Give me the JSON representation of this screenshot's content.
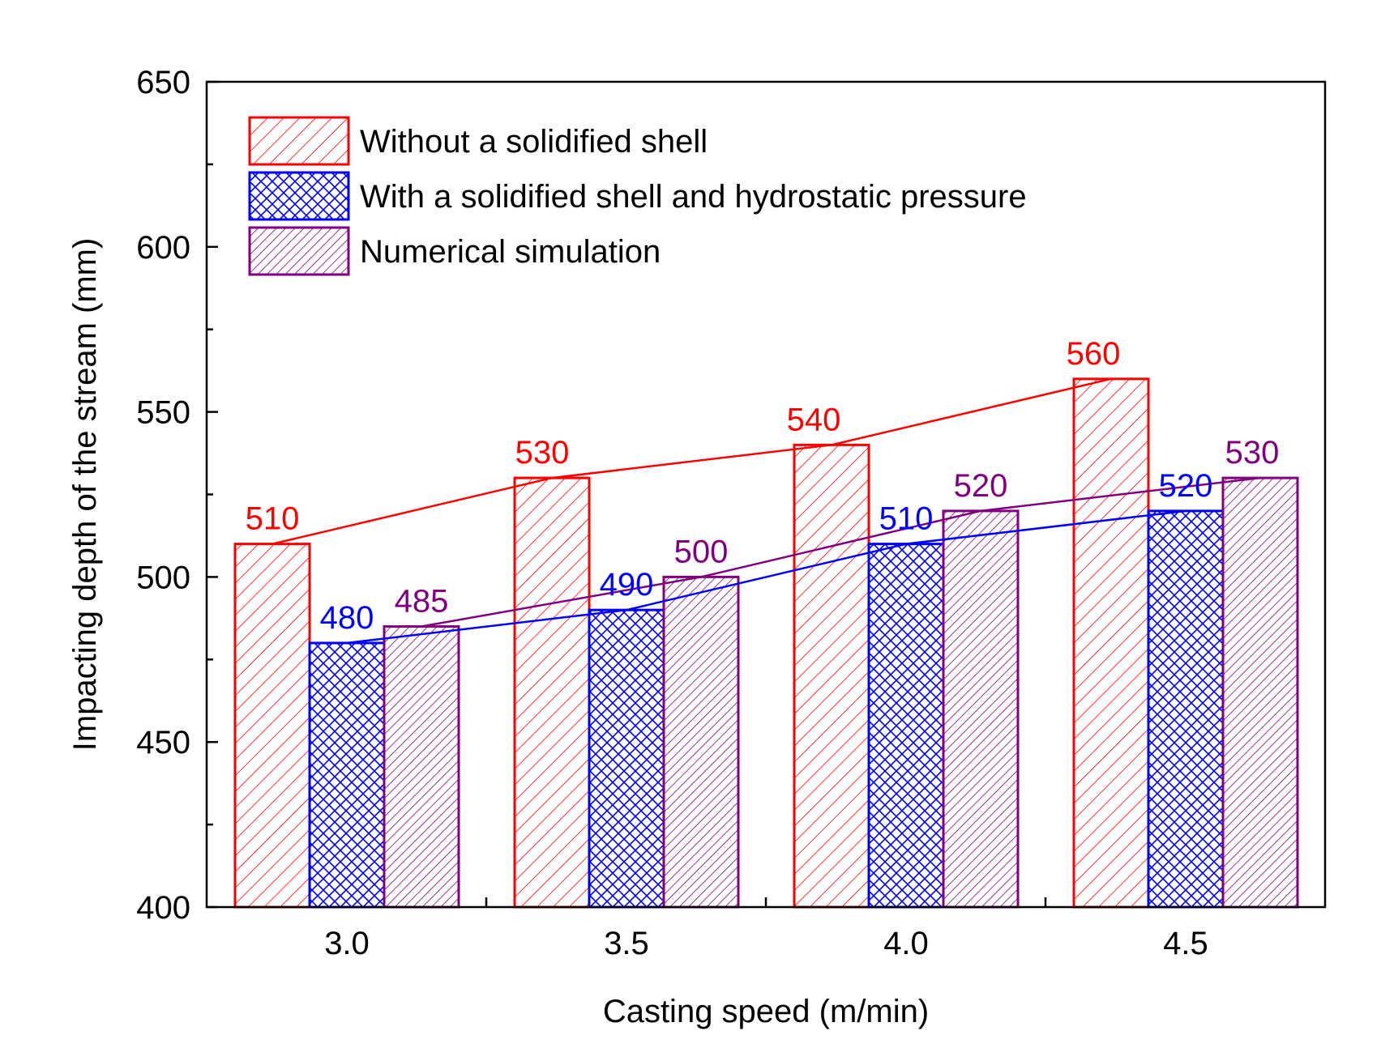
{
  "chart_data": {
    "type": "bar",
    "title": "",
    "xlabel": "Casting speed (m/min)",
    "ylabel": "Impacting depth of the stream (mm)",
    "categories": [
      "3.0",
      "3.5",
      "4.0",
      "4.5"
    ],
    "ylim": [
      400,
      650
    ],
    "yticks": [
      "400",
      "450",
      "500",
      "550",
      "600",
      "650"
    ],
    "grid": false,
    "legend_position": "top-left",
    "series": [
      {
        "name": "Without a solidified shell",
        "values": [
          510,
          530,
          540,
          560
        ],
        "labels": [
          "510",
          "530",
          "540",
          "560"
        ],
        "color": "#ff0000",
        "pattern": "diagonal-hatch"
      },
      {
        "name": "With a solidified shell and hydrostatic pressure",
        "values": [
          480,
          490,
          510,
          520
        ],
        "labels": [
          "480",
          "490",
          "510",
          "520"
        ],
        "color": "#0000ff",
        "pattern": "cross-hatch"
      },
      {
        "name": "Numerical simulation",
        "values": [
          485,
          500,
          520,
          530
        ],
        "labels": [
          "485",
          "500",
          "520",
          "530"
        ],
        "color": "#800080",
        "pattern": "dense-diagonal-hatch"
      }
    ],
    "connecting_lines": true
  }
}
